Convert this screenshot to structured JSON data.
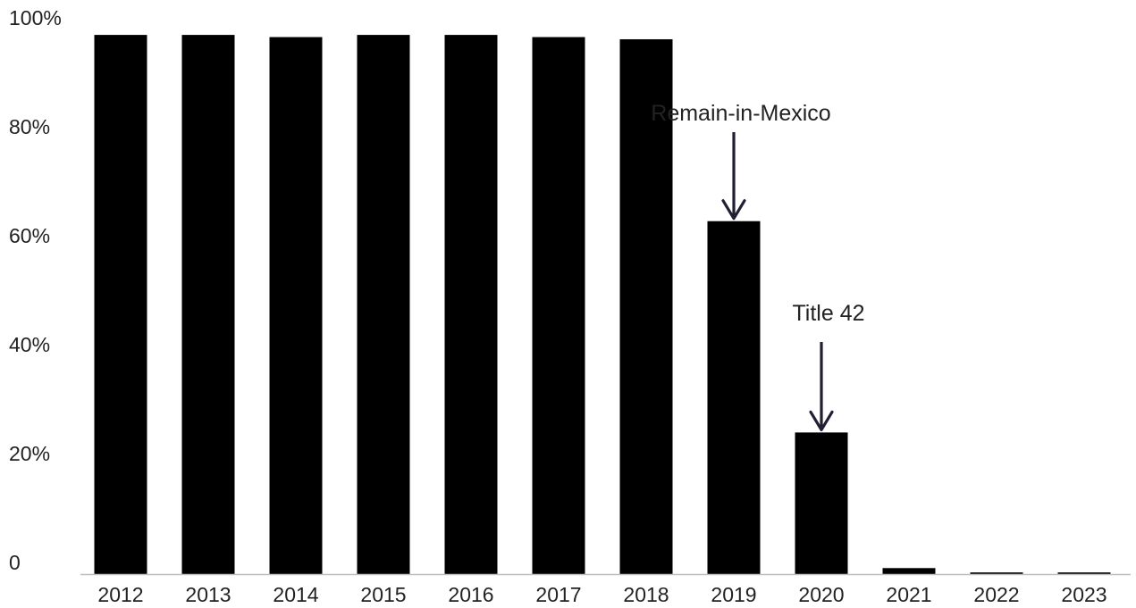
{
  "chart_data": {
    "type": "bar",
    "categories": [
      "2012",
      "2013",
      "2014",
      "2015",
      "2016",
      "2017",
      "2018",
      "2019",
      "2020",
      "2021",
      "2022",
      "2023"
    ],
    "values": [
      99,
      99,
      98.6,
      99,
      99,
      98.6,
      98.2,
      64.8,
      26,
      1.1,
      0.3,
      0.3
    ],
    "ylim": [
      0,
      100
    ],
    "ytick_values": [
      0,
      20,
      40,
      60,
      80,
      100
    ],
    "ytick_labels": [
      "0",
      "20%",
      "40%",
      "60%",
      "80%",
      "100%"
    ],
    "grid": false,
    "bar_color": "#000000",
    "annotations": [
      {
        "text": "Remain-in-Mexico",
        "category": "2019"
      },
      {
        "text": "Title 42",
        "category": "2020"
      }
    ],
    "annotation_color": "#221f33"
  }
}
